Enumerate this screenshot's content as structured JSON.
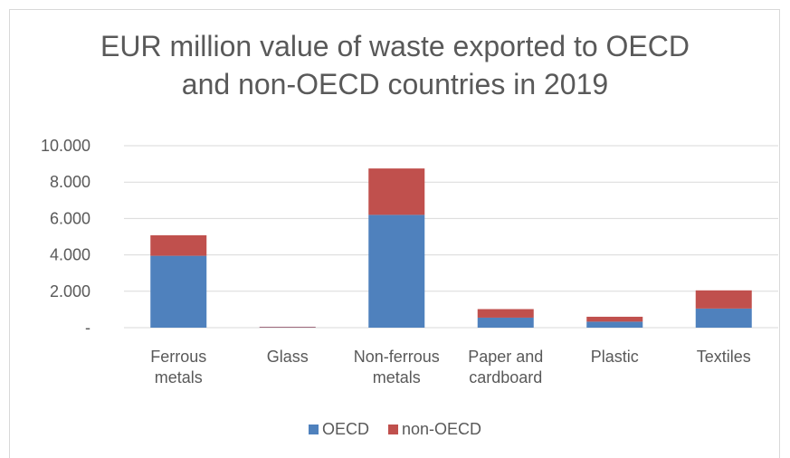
{
  "chart_data": {
    "type": "bar",
    "stacked": true,
    "title_line1": "EUR million value of waste exported to OECD",
    "title_line2": "and non-OECD countries in 2019",
    "categories": [
      [
        "Ferrous",
        "metals"
      ],
      [
        "Glass"
      ],
      [
        "Non-ferrous",
        "metals"
      ],
      [
        "Paper and",
        "cardboard"
      ],
      [
        "Plastic"
      ],
      [
        "Textiles"
      ]
    ],
    "series": [
      {
        "name": "OECD",
        "color": "#4f81bd",
        "values": [
          3950,
          20,
          6200,
          550,
          330,
          1050
        ]
      },
      {
        "name": "non-OECD",
        "color": "#c0504d",
        "values": [
          1130,
          30,
          2550,
          470,
          270,
          1000
        ]
      }
    ],
    "ylim": [
      0,
      10000
    ],
    "yticks": [
      0,
      2000,
      4000,
      6000,
      8000,
      10000
    ],
    "ytick_labels": [
      "-",
      "2.000",
      "4.000",
      "6.000",
      "8.000",
      "10.000"
    ],
    "grid": true,
    "legend_position": "bottom"
  }
}
